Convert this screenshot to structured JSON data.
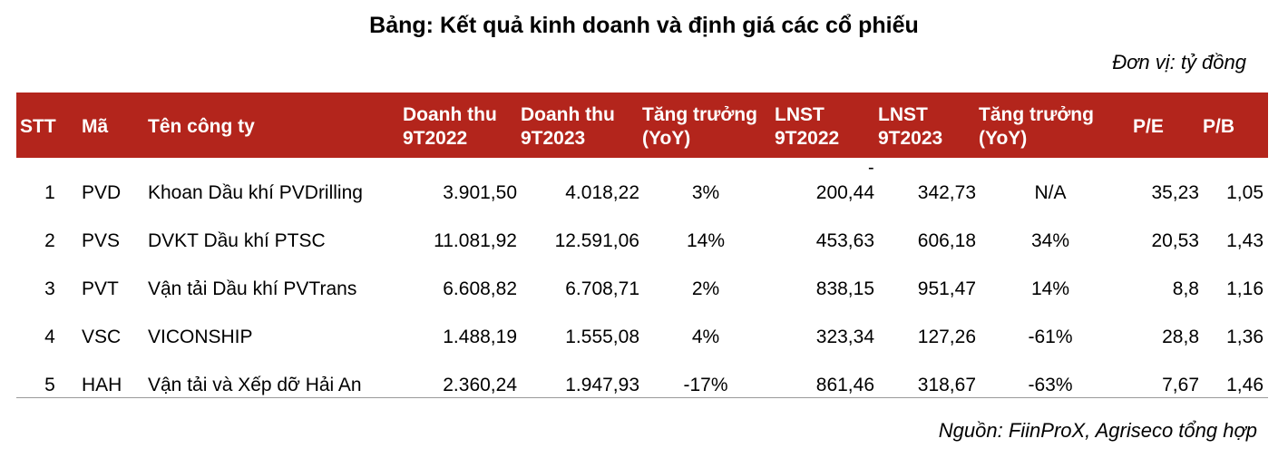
{
  "title": "Bảng: Kết quả kinh doanh và định giá các cổ phiếu",
  "unit": "Đơn vị: tỷ đồng",
  "headers": {
    "stt": "STT",
    "ma": "Mã",
    "ten": "Tên công ty",
    "dt2022_l1": "Doanh thu",
    "dt2022_l2": "9T2022",
    "dt2023_l1": "Doanh thu",
    "dt2023_l2": "9T2023",
    "tt1_l1": "Tăng trưởng",
    "tt1_l2": "(YoY)",
    "ln2022_l1": "LNST",
    "ln2022_l2": "9T2022",
    "ln2023_l1": "LNST",
    "ln2023_l2": "9T2023",
    "tt2_l1": "Tăng trưởng",
    "tt2_l2": "(YoY)",
    "pe": "P/E",
    "pb": "P/B"
  },
  "stray_mark": "-",
  "rows": [
    {
      "stt": "1",
      "ma": "PVD",
      "ten": "Khoan Dầu khí PVDrilling",
      "dt2022": "3.901,50",
      "dt2023": "4.018,22",
      "tt1": "3%",
      "ln2022": "200,44",
      "ln2023": "342,73",
      "tt2": "N/A",
      "pe": "35,23",
      "pb": "1,05"
    },
    {
      "stt": "2",
      "ma": "PVS",
      "ten": "DVKT Dầu khí PTSC",
      "dt2022": "11.081,92",
      "dt2023": "12.591,06",
      "tt1": "14%",
      "ln2022": "453,63",
      "ln2023": "606,18",
      "tt2": "34%",
      "pe": "20,53",
      "pb": "1,43"
    },
    {
      "stt": "3",
      "ma": "PVT",
      "ten": "Vận tải Dầu khí PVTrans",
      "dt2022": "6.608,82",
      "dt2023": "6.708,71",
      "tt1": "2%",
      "ln2022": "838,15",
      "ln2023": "951,47",
      "tt2": "14%",
      "pe": "8,8",
      "pb": "1,16"
    },
    {
      "stt": "4",
      "ma": "VSC",
      "ten": "VICONSHIP",
      "dt2022": "1.488,19",
      "dt2023": "1.555,08",
      "tt1": "4%",
      "ln2022": "323,34",
      "ln2023": "127,26",
      "tt2": "-61%",
      "pe": "28,8",
      "pb": "1,36"
    },
    {
      "stt": "5",
      "ma": "HAH",
      "ten": "Vận tải và Xếp dỡ Hải An",
      "dt2022": "2.360,24",
      "dt2023": "1.947,93",
      "tt1": "-17%",
      "ln2022": "861,46",
      "ln2023": "318,67",
      "tt2": "-63%",
      "pe": "7,67",
      "pb": "1,46"
    }
  ],
  "source": "Nguồn: FiinProX, Agriseco tổng hợp"
}
